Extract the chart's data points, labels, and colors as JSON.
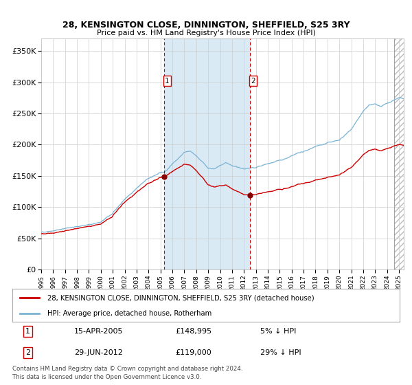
{
  "title": "28, KENSINGTON CLOSE, DINNINGTON, SHEFFIELD, S25 3RY",
  "subtitle": "Price paid vs. HM Land Registry's House Price Index (HPI)",
  "legend_line1": "28, KENSINGTON CLOSE, DINNINGTON, SHEFFIELD, S25 3RY (detached house)",
  "legend_line2": "HPI: Average price, detached house, Rotherham",
  "transaction1_date": "15-APR-2005",
  "transaction1_price": 148995,
  "transaction1_pct": "5% ↓ HPI",
  "transaction2_date": "29-JUN-2012",
  "transaction2_price": 119000,
  "transaction2_pct": "29% ↓ HPI",
  "footnote": "Contains HM Land Registry data © Crown copyright and database right 2024.\nThis data is licensed under the Open Government Licence v3.0.",
  "hpi_color": "#7ab3d4",
  "price_color": "#cc0000",
  "marker_color": "#880000",
  "vline_color": "#cc0000",
  "shade_color": "#daeaf5",
  "ylim": [
    0,
    370000
  ],
  "yticks": [
    0,
    50000,
    100000,
    150000,
    200000,
    250000,
    300000,
    350000
  ],
  "sale1_year": 2005.29,
  "sale2_year": 2012.49,
  "xstart": 1995.0,
  "xend": 2025.4
}
